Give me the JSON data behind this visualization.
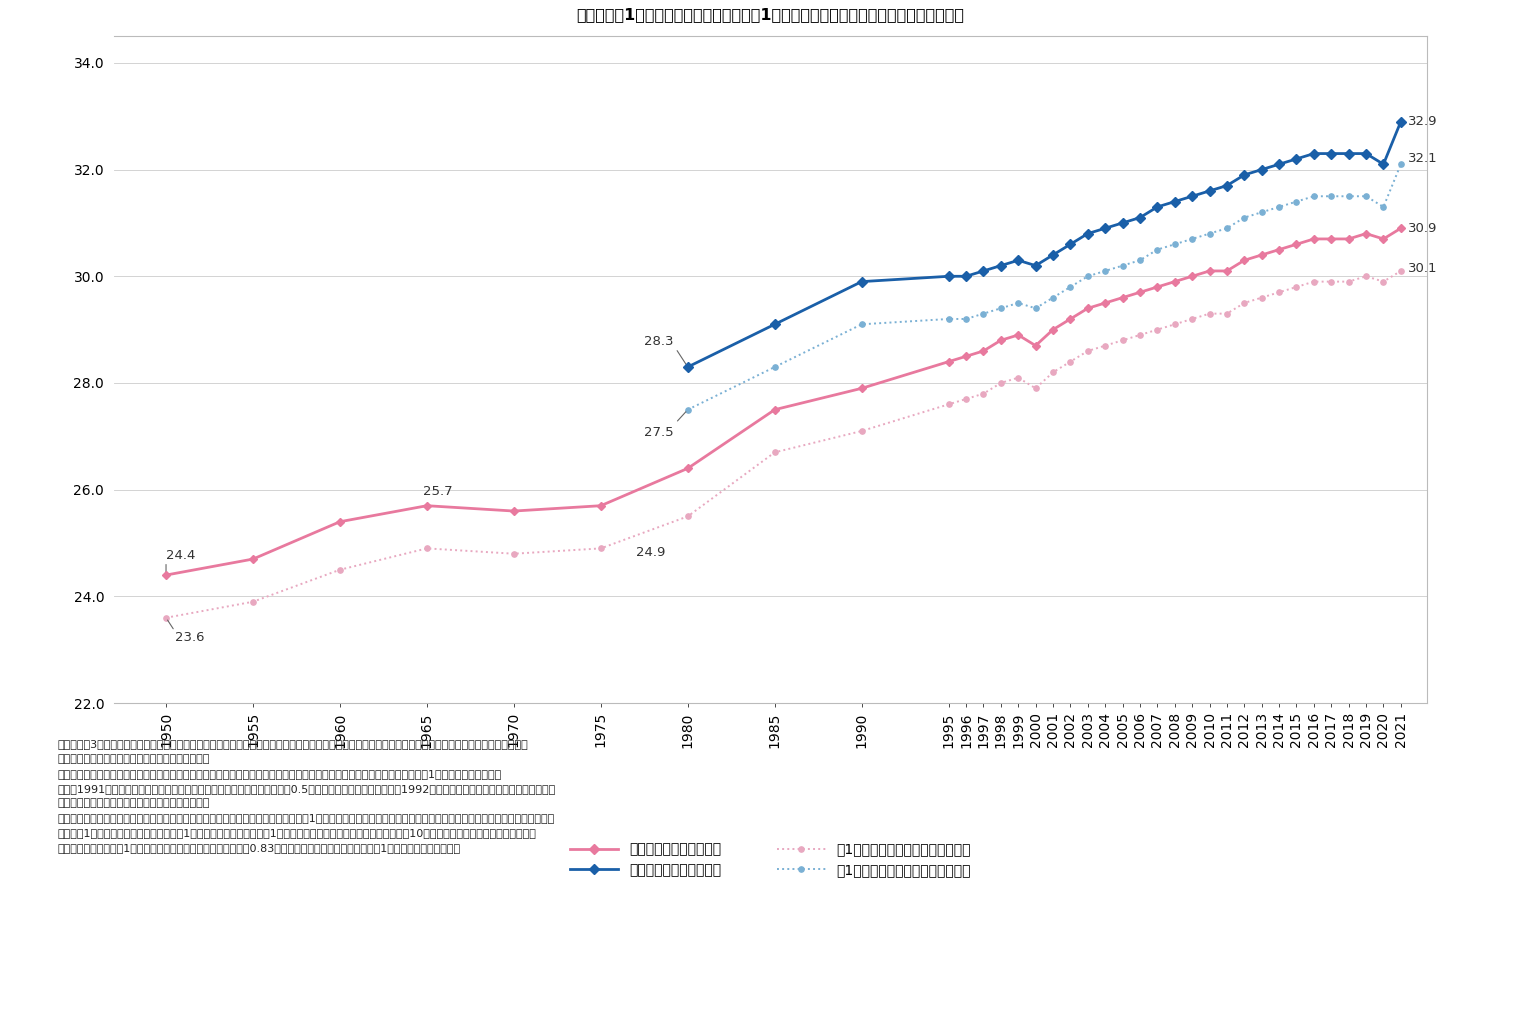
{
  "title": "図表２．第1子妊娠時（予測値）及び、第1子出産（出生）時の母・父の年齢推移（歳）",
  "years": [
    1950,
    1955,
    1960,
    1965,
    1970,
    1975,
    1980,
    1985,
    1990,
    1995,
    1996,
    1997,
    1998,
    1999,
    2000,
    2001,
    2002,
    2003,
    2004,
    2005,
    2006,
    2007,
    2008,
    2009,
    2010,
    2011,
    2012,
    2013,
    2014,
    2015,
    2016,
    2017,
    2018,
    2019,
    2020,
    2021
  ],
  "mother_birth": [
    24.4,
    24.7,
    25.4,
    25.7,
    25.6,
    25.7,
    26.4,
    27.5,
    27.9,
    28.4,
    28.5,
    28.6,
    28.8,
    28.9,
    28.7,
    29.0,
    29.2,
    29.4,
    29.5,
    29.6,
    29.7,
    29.8,
    29.9,
    30.0,
    30.1,
    30.1,
    30.3,
    30.4,
    30.5,
    30.6,
    30.7,
    30.7,
    30.7,
    30.8,
    30.7,
    30.9
  ],
  "father_birth": [
    null,
    null,
    null,
    null,
    null,
    null,
    28.3,
    29.1,
    29.9,
    30.0,
    30.0,
    30.1,
    30.2,
    30.3,
    30.2,
    30.4,
    30.6,
    30.8,
    30.9,
    31.0,
    31.1,
    31.3,
    31.4,
    31.5,
    31.6,
    31.7,
    31.9,
    32.0,
    32.1,
    32.2,
    32.3,
    32.3,
    32.3,
    32.3,
    32.1,
    32.9
  ],
  "mother_pregnancy": [
    23.6,
    23.9,
    24.5,
    24.9,
    24.8,
    24.9,
    25.5,
    26.7,
    27.1,
    27.6,
    27.7,
    27.8,
    28.0,
    28.1,
    27.9,
    28.2,
    28.4,
    28.6,
    28.7,
    28.8,
    28.9,
    29.0,
    29.1,
    29.2,
    29.3,
    29.3,
    29.5,
    29.6,
    29.7,
    29.8,
    29.9,
    29.9,
    29.9,
    30.0,
    29.9,
    30.1
  ],
  "father_pregnancy": [
    null,
    null,
    null,
    null,
    null,
    null,
    27.5,
    28.3,
    29.1,
    29.2,
    29.2,
    29.3,
    29.4,
    29.5,
    29.4,
    29.6,
    29.8,
    30.0,
    30.1,
    30.2,
    30.3,
    30.5,
    30.6,
    30.7,
    30.8,
    30.9,
    31.1,
    31.2,
    31.3,
    31.4,
    31.5,
    31.5,
    31.5,
    31.5,
    31.3,
    32.1
  ],
  "ylim": [
    22.0,
    34.5
  ],
  "yticks": [
    22.0,
    24.0,
    26.0,
    28.0,
    30.0,
    32.0,
    34.0
  ],
  "mother_birth_color": "#e8799e",
  "father_birth_color": "#1a5fa8",
  "mother_pregnancy_color": "#e8a8c0",
  "father_pregnancy_color": "#7ab0d4",
  "legend_mother_birth": "第１子出産時の母の年齢",
  "legend_father_birth": "第１子出生時の父の年齢",
  "legend_mother_preg": "第1子妊娠時の年齢の予測値（母）",
  "legend_father_preg": "第1子妊娠時の年齢の予測値（父）",
  "fn1": "出所：令和3年人口動態統計「上巻　出生　第４．２０表　出生順位別にみた年次別父の平均年齢」及び、「上巻　出生　第４．１９表　出生順位別にみた年",
  "fn2": "　　　次別母の平均年齢」より、筆者が図表を作成",
  "fn3": "注１）データ元の表記である出生順位とは、同じ母親がこれまでに生んだ出生子の総数について数えた順序であり、今回は第1子の数値を用いてる。",
  "fn4": "注２）1991年（平成３年）までの父の平均年齢は、満年齢の算術平均値に0.5歳の補正値を加えたものだが、1992年（平成４年）に調査票を改正し、これ以",
  "fn5": "　　　降は、日齢の算術平均値から算出している。",
  "fn6": "注３）データ元の総数は第４子以上が含まれた平均年齢を用いているが、今回は、第1子出生時の父・母の年齢のみを用いているため総数は除外していることに留意。",
  "fn7": "注４）第1子妊娠時の母・父の年齢は、第1子出産時の母の年齢及び第1子出生時の父の年齢を基に、正期妊娠期間を10カ月と仮定した上で、「妊娠時の年齢",
  "fn8": "　　　（予測値）＝第1子出産（出生）時の母・父の年齢　－（0.83）」にて単純算出した値を小数点第1位に変換表記している。"
}
